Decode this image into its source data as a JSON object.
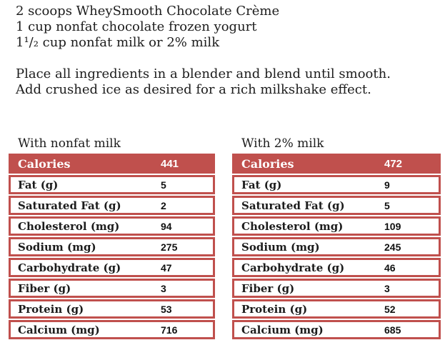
{
  "ingredients": {
    "line1": "2 scoops WheySmooth Chocolate Crème",
    "line2": "1 cup nonfat chocolate frozen yogurt",
    "line3": "1¹/₂ cup nonfat milk or 2% milk"
  },
  "instructions": {
    "line1": "Place all ingredients in a blender and blend until smooth.",
    "line2": "Add crushed ice as desired for a rich milkshake effect."
  },
  "tables": [
    {
      "title": "With nonfat milk",
      "header": {
        "label": "Calories",
        "value": "441"
      },
      "rows": [
        {
          "label": "Fat (g)",
          "value": "5"
        },
        {
          "label": "Saturated Fat (g)",
          "value": "2"
        },
        {
          "label": "Cholesterol (mg)",
          "value": "94"
        },
        {
          "label": "Sodium (mg)",
          "value": "275"
        },
        {
          "label": "Carbohydrate (g)",
          "value": "47"
        },
        {
          "label": "Fiber (g)",
          "value": "3"
        },
        {
          "label": "Protein (g)",
          "value": "53"
        },
        {
          "label": "Calcium (mg)",
          "value": "716"
        }
      ]
    },
    {
      "title": "With 2% milk",
      "header": {
        "label": "Calories",
        "value": "472"
      },
      "rows": [
        {
          "label": "Fat (g)",
          "value": "9"
        },
        {
          "label": "Saturated Fat (g)",
          "value": "5"
        },
        {
          "label": "Cholesterol (mg)",
          "value": "109"
        },
        {
          "label": "Sodium (mg)",
          "value": "245"
        },
        {
          "label": "Carbohydrate (g)",
          "value": "46"
        },
        {
          "label": "Fiber (g)",
          "value": "3"
        },
        {
          "label": "Protein (g)",
          "value": "52"
        },
        {
          "label": "Calcium (mg)",
          "value": "685"
        }
      ]
    }
  ],
  "colors": {
    "table_red": "#c0504d",
    "header_text": "#ffffff",
    "body_text": "#1c1c1c",
    "row_bg": "#ffffff"
  }
}
